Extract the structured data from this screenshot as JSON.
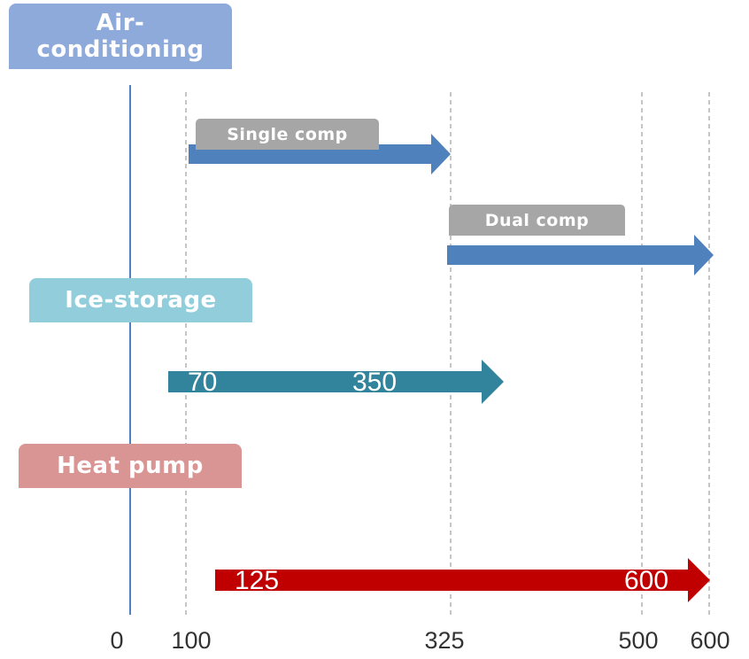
{
  "axis": {
    "ticks": [
      {
        "value": 0,
        "label": "0"
      },
      {
        "value": 100,
        "label": "100"
      },
      {
        "value": 325,
        "label": "325"
      },
      {
        "value": 500,
        "label": "500"
      },
      {
        "value": 600,
        "label": "600"
      }
    ]
  },
  "categories": {
    "air_conditioning": {
      "label": "Air-\nconditioning",
      "color": "#8eaadb"
    },
    "ice_storage": {
      "label": "Ice-storage",
      "color": "#92cddc"
    },
    "heat_pump": {
      "label": "Heat pump",
      "color": "#d99594"
    }
  },
  "ranges": [
    {
      "id": "single_comp",
      "category": "air_conditioning",
      "label": "Single comp",
      "start": 100,
      "end": 325,
      "color": "#4f81bd"
    },
    {
      "id": "dual_comp",
      "category": "air_conditioning",
      "label": "Dual comp",
      "start": 325,
      "end": 600,
      "color": "#4f81bd"
    },
    {
      "id": "ice_storage",
      "category": "ice_storage",
      "start": 70,
      "end": 350,
      "start_label": "70",
      "end_label": "350",
      "color": "#31849b"
    },
    {
      "id": "heat_pump",
      "category": "heat_pump",
      "start": 125,
      "end": 600,
      "start_label": "125",
      "end_label": "600",
      "color": "#c00000"
    }
  ],
  "colors": {
    "zero_line": "#4f81bd",
    "dashed_line": "#a6a6a6",
    "tag_background": "#a6a6a6"
  }
}
